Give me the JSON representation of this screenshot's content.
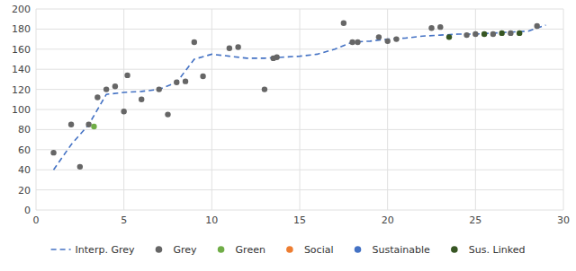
{
  "chart_data": {
    "type": "scatter",
    "grid": true,
    "xlim": [
      0,
      30
    ],
    "ylim": [
      0,
      200
    ],
    "xticks": [
      0,
      5,
      10,
      15,
      20,
      25,
      30
    ],
    "yticks": [
      0,
      20,
      40,
      60,
      80,
      100,
      120,
      140,
      160,
      180,
      200
    ],
    "series": [
      {
        "name": "Interp. Grey",
        "type": "line",
        "color": "#4472c4",
        "line_style": "dashed",
        "x": [
          1,
          2,
          3,
          4,
          5,
          6,
          7,
          8,
          9,
          10,
          11,
          12,
          13,
          14,
          15,
          16,
          17,
          18,
          19,
          20,
          21,
          22,
          23,
          24,
          25,
          26,
          27,
          28,
          29
        ],
        "values": [
          40,
          65,
          85,
          115,
          117,
          118,
          120,
          127,
          150,
          155,
          153,
          151,
          151,
          152,
          153,
          155,
          160,
          167,
          168,
          170,
          171,
          173,
          174,
          175,
          175,
          176,
          177,
          178,
          184
        ]
      },
      {
        "name": "Grey",
        "type": "scatter",
        "color": "#666666",
        "marker": "circle",
        "x": [
          1.0,
          2.0,
          2.5,
          3.0,
          3.5,
          4.0,
          4.5,
          5.0,
          5.2,
          6.0,
          7.0,
          7.5,
          8.0,
          8.5,
          9.0,
          9.5,
          11.0,
          11.5,
          13.0,
          13.5,
          13.7,
          17.5,
          18.0,
          18.3,
          19.5,
          20.0,
          20.5,
          22.5,
          23.0,
          24.5,
          25.0,
          26.0,
          27.0,
          28.5
        ],
        "values": [
          57,
          85,
          43,
          85,
          112,
          120,
          123,
          98,
          134,
          110,
          120,
          95,
          127,
          128,
          167,
          133,
          161,
          162,
          120,
          151,
          152,
          186,
          167,
          167,
          172,
          168,
          170,
          181,
          182,
          174,
          175,
          175,
          176,
          183
        ]
      },
      {
        "name": "Green",
        "type": "scatter",
        "color": "#70ad47",
        "marker": "circle",
        "x": [
          3.3
        ],
        "values": [
          83
        ]
      },
      {
        "name": "Social",
        "type": "scatter",
        "color": "#ed7d31",
        "marker": "circle",
        "x": [],
        "values": []
      },
      {
        "name": "Sustainable",
        "type": "scatter",
        "color": "#4472c4",
        "marker": "circle",
        "x": [],
        "values": []
      },
      {
        "name": "Sus. Linked",
        "type": "scatter",
        "color": "#375623",
        "marker": "circle",
        "x": [
          23.5,
          25.5,
          26.5,
          27.5
        ],
        "values": [
          172,
          175,
          176,
          176
        ]
      }
    ]
  }
}
